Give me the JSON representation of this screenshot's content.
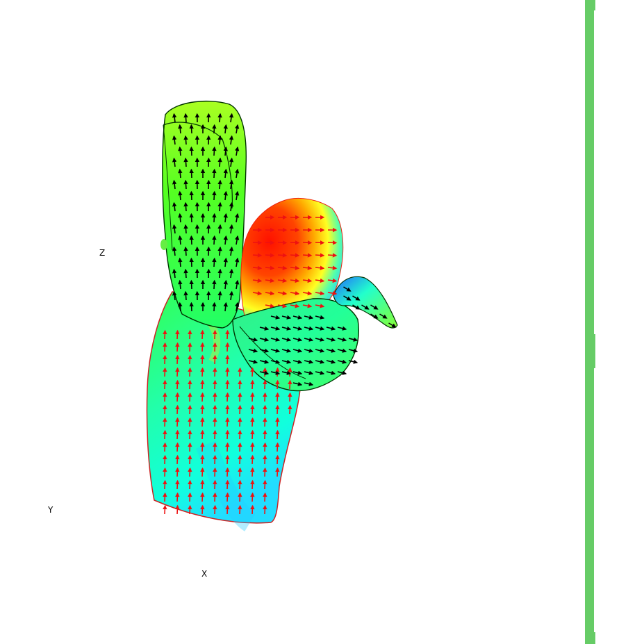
{
  "axes": {
    "x_label": "X",
    "y_label": "Y",
    "z_label": "Z"
  },
  "colors": {
    "background": "#ffffff",
    "side_bar": "#66cc66",
    "arrow_red": "#ee1111",
    "arrow_black": "#000000"
  },
  "icons": {
    "vector_glyph": "arrow-icon"
  }
}
